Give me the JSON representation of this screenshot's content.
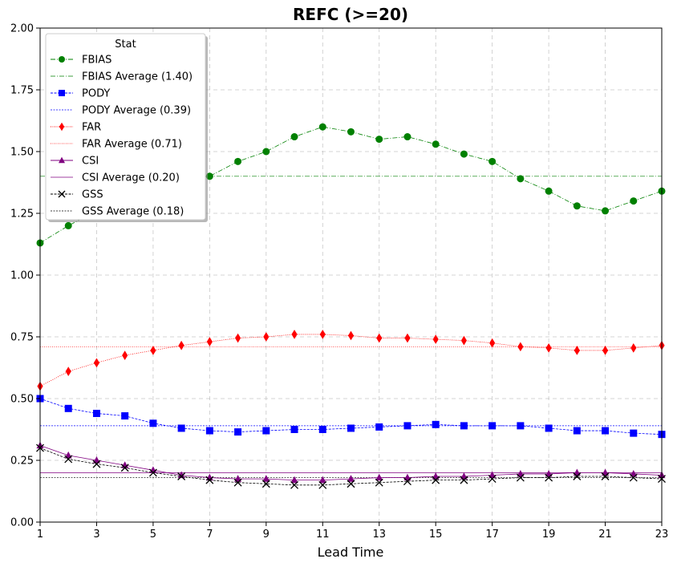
{
  "chart_data": {
    "type": "line",
    "title": "REFC (>=20)",
    "xlabel": "Lead Time",
    "ylabel": "",
    "xlim": [
      1,
      23
    ],
    "ylim": [
      0,
      2.0
    ],
    "xticks": [
      1,
      3,
      5,
      7,
      9,
      11,
      13,
      15,
      17,
      19,
      21,
      23
    ],
    "yticks": [
      "0.00",
      "0.25",
      "0.50",
      "0.75",
      "1.00",
      "1.25",
      "1.50",
      "1.75",
      "2.00"
    ],
    "grid": true,
    "legend": {
      "title": "Stat",
      "placement": "top-left"
    },
    "x": [
      1,
      2,
      3,
      4,
      5,
      6,
      7,
      8,
      9,
      10,
      11,
      12,
      13,
      14,
      15,
      16,
      17,
      18,
      19,
      20,
      21,
      22,
      23
    ],
    "series": [
      {
        "name": "FBIAS",
        "color": "#008000",
        "marker": "circle",
        "values": [
          1.13,
          1.2,
          1.26,
          1.32,
          1.36,
          1.39,
          1.4,
          1.46,
          1.5,
          1.56,
          1.6,
          1.58,
          1.55,
          1.56,
          1.53,
          1.49,
          1.46,
          1.39,
          1.34,
          1.28,
          1.26,
          1.3,
          1.34
        ],
        "average": 1.4,
        "average_label": "FBIAS Average (1.40)"
      },
      {
        "name": "PODY",
        "color": "#0000ff",
        "marker": "square",
        "values": [
          0.5,
          0.46,
          0.44,
          0.43,
          0.4,
          0.38,
          0.37,
          0.365,
          0.37,
          0.375,
          0.375,
          0.38,
          0.385,
          0.39,
          0.395,
          0.39,
          0.39,
          0.39,
          0.38,
          0.37,
          0.37,
          0.36,
          0.355
        ],
        "average": 0.39,
        "average_label": "PODY Average (0.39)"
      },
      {
        "name": "FAR",
        "color": "#ff0000",
        "marker": "diamond",
        "values": [
          0.55,
          0.61,
          0.645,
          0.675,
          0.695,
          0.715,
          0.73,
          0.745,
          0.75,
          0.76,
          0.76,
          0.755,
          0.745,
          0.745,
          0.74,
          0.735,
          0.725,
          0.71,
          0.705,
          0.695,
          0.695,
          0.705,
          0.715
        ],
        "average": 0.71,
        "average_label": "FAR Average (0.71)"
      },
      {
        "name": "CSI",
        "color": "#800080",
        "marker": "triangle",
        "values": [
          0.31,
          0.27,
          0.25,
          0.23,
          0.21,
          0.19,
          0.18,
          0.175,
          0.175,
          0.17,
          0.17,
          0.175,
          0.18,
          0.18,
          0.185,
          0.185,
          0.19,
          0.195,
          0.195,
          0.2,
          0.2,
          0.195,
          0.19
        ],
        "average": 0.2,
        "average_label": "CSI Average (0.20)"
      },
      {
        "name": "GSS",
        "color": "#000000",
        "marker": "x",
        "values": [
          0.3,
          0.255,
          0.235,
          0.22,
          0.2,
          0.185,
          0.17,
          0.16,
          0.155,
          0.15,
          0.15,
          0.155,
          0.16,
          0.165,
          0.17,
          0.17,
          0.175,
          0.18,
          0.18,
          0.185,
          0.185,
          0.18,
          0.175
        ],
        "average": 0.18,
        "average_label": "GSS Average (0.18)"
      }
    ]
  }
}
